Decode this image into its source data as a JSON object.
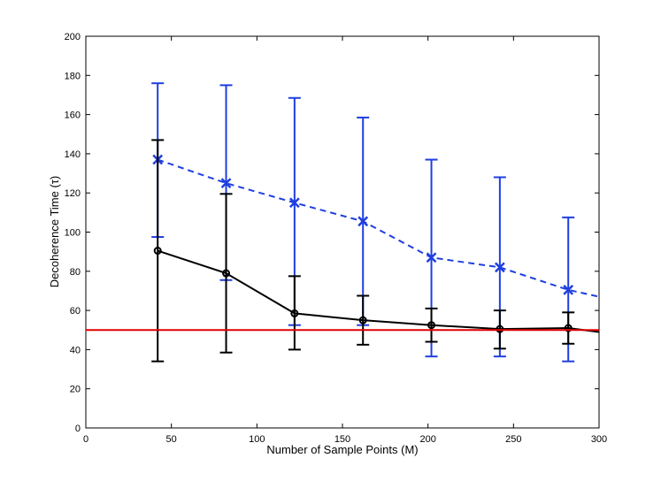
{
  "chart_data": {
    "type": "line",
    "title": "",
    "xlabel": "Number of Sample Points (M)",
    "ylabel": "Decoherence Time (τ)",
    "xlim": [
      0,
      300
    ],
    "ylim": [
      0,
      200
    ],
    "x_ticks": [
      0,
      50,
      100,
      150,
      200,
      250,
      300
    ],
    "y_ticks": [
      0,
      20,
      40,
      60,
      80,
      100,
      120,
      140,
      160,
      180,
      200
    ],
    "grid": false,
    "legend": "none",
    "series": [
      {
        "color": "#1f3fe0",
        "line_style": "dashed",
        "marker": "x",
        "x": [
          42,
          82,
          122,
          162,
          202,
          242,
          282,
          300
        ],
        "y": [
          137,
          125,
          115,
          105.5,
          87,
          82,
          70.5,
          67
        ],
        "marker_count": 7,
        "error_low": [
          97.5,
          75.5,
          52.5,
          52.5,
          36.5,
          36.5,
          34
        ],
        "error_high": [
          176,
          175,
          168.5,
          158.5,
          137,
          128,
          107.5
        ]
      },
      {
        "color": "#000000",
        "line_style": "solid",
        "marker": "o",
        "x": [
          42,
          82,
          122,
          162,
          202,
          242,
          282,
          300
        ],
        "y": [
          90.5,
          79,
          58.5,
          55,
          52.5,
          50.5,
          51,
          49
        ],
        "marker_count": 7,
        "error_low": [
          34,
          38.5,
          40,
          42.5,
          44,
          40.5,
          43
        ],
        "error_high": [
          147,
          119.5,
          77.5,
          67.5,
          61,
          60,
          59
        ]
      }
    ],
    "reference_lines": [
      {
        "y": 50,
        "color": "#e00000"
      }
    ]
  }
}
